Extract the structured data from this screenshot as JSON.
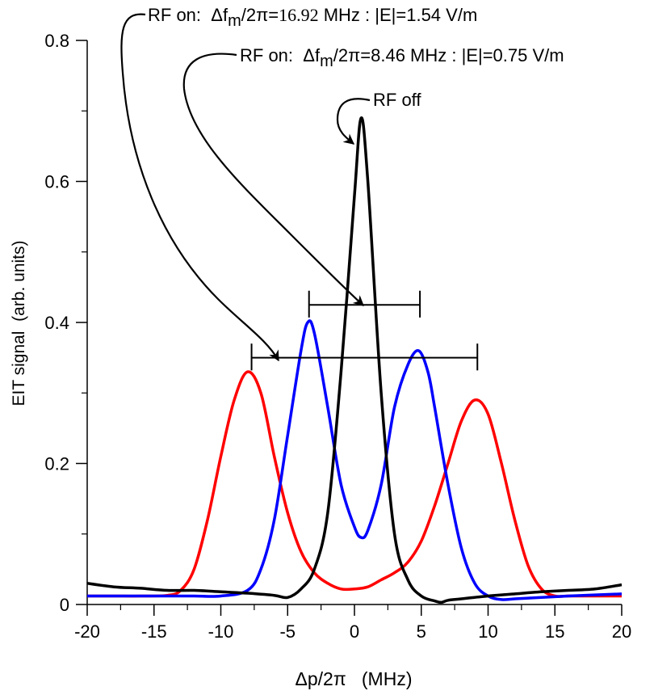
{
  "chart_data": {
    "type": "line",
    "title": "",
    "xlabel": "Δp/2π   (MHz)",
    "ylabel": "EIT signal  (arb. units)",
    "xlim": [
      -20,
      20
    ],
    "ylim": [
      0,
      0.8
    ],
    "x_ticks": [
      -20,
      -15,
      -10,
      -5,
      0,
      5,
      10,
      15,
      20
    ],
    "x_tick_labels": [
      "-20",
      "-15",
      "-10",
      "-5",
      "0",
      "5",
      "10",
      "15",
      "20"
    ],
    "y_ticks": [
      0,
      0.2,
      0.4,
      0.6,
      0.8
    ],
    "y_tick_labels": [
      "0",
      "0.2",
      "0.4",
      "0.6",
      "0.8"
    ],
    "grid": false,
    "series": [
      {
        "name": "RF off",
        "color": "#000000",
        "x": [
          -20,
          -18,
          -16,
          -14,
          -12,
          -10,
          -8,
          -6,
          -5,
          -4,
          -3,
          -2,
          -1,
          0,
          0.5,
          1,
          2,
          3,
          4,
          5,
          6,
          6.5,
          7,
          8,
          10,
          12,
          14,
          16,
          18,
          20
        ],
        "y": [
          0.03,
          0.025,
          0.023,
          0.02,
          0.02,
          0.018,
          0.016,
          0.013,
          0.01,
          0.022,
          0.05,
          0.13,
          0.33,
          0.58,
          0.69,
          0.6,
          0.3,
          0.1,
          0.035,
          0.012,
          0.005,
          0.003,
          0.006,
          0.008,
          0.012,
          0.015,
          0.018,
          0.02,
          0.022,
          0.028
        ]
      },
      {
        "name": "RF on: Δfm/2π=8.46 MHz",
        "color": "#0000ff",
        "x": [
          -20,
          -16,
          -14,
          -12,
          -10,
          -8,
          -7,
          -6,
          -5,
          -4,
          -3.5,
          -3,
          -2,
          -1,
          0,
          0.5,
          1,
          2,
          3,
          4,
          4.8,
          5.5,
          6,
          7,
          8,
          9,
          10,
          11,
          12,
          14,
          16,
          20
        ],
        "y": [
          0.012,
          0.012,
          0.012,
          0.012,
          0.012,
          0.02,
          0.05,
          0.12,
          0.24,
          0.36,
          0.4,
          0.385,
          0.28,
          0.17,
          0.11,
          0.095,
          0.105,
          0.17,
          0.28,
          0.34,
          0.36,
          0.33,
          0.28,
          0.17,
          0.08,
          0.03,
          0.012,
          0.007,
          0.008,
          0.01,
          0.012,
          0.015
        ]
      },
      {
        "name": "RF on: Δfm/2π=16.92 MHz",
        "color": "#ff0000",
        "x": [
          -20,
          -18,
          -16,
          -14,
          -13,
          -12,
          -11,
          -10,
          -9,
          -8,
          -7,
          -6,
          -5,
          -4,
          -3,
          -2,
          -1,
          0,
          1,
          2,
          3,
          4,
          5,
          6,
          7,
          8,
          9,
          10,
          11,
          12,
          13,
          14,
          15,
          16,
          18,
          20
        ],
        "y": [
          0.012,
          0.012,
          0.012,
          0.013,
          0.02,
          0.05,
          0.12,
          0.21,
          0.29,
          0.33,
          0.3,
          0.21,
          0.13,
          0.075,
          0.045,
          0.03,
          0.022,
          0.022,
          0.025,
          0.035,
          0.045,
          0.06,
          0.09,
          0.14,
          0.2,
          0.26,
          0.29,
          0.27,
          0.2,
          0.12,
          0.055,
          0.022,
          0.012,
          0.012,
          0.012,
          0.012
        ]
      }
    ],
    "spacing_markers": [
      {
        "x1": -3.4,
        "x2": 4.9,
        "y": 0.425,
        "cap_height": 0.02
      },
      {
        "x1": -7.7,
        "x2": 9.2,
        "y": 0.35,
        "cap_height": 0.02
      }
    ],
    "annotations": [
      {
        "id": "rf-on-16",
        "prefix": "RF on:  ",
        "delta": "Δf",
        "sub": "m",
        "mid": "/2π=",
        "value": "16.92",
        "suffix": " MHz : |E|=1.54 V/m"
      },
      {
        "id": "rf-on-8",
        "prefix": "RF on:  ",
        "delta": "Δf",
        "sub": "m",
        "mid": "/2π=",
        "value": "8.46",
        "suffix": " MHz : |E|=0.75 V/m"
      },
      {
        "id": "rf-off",
        "text": "RF off"
      }
    ]
  }
}
